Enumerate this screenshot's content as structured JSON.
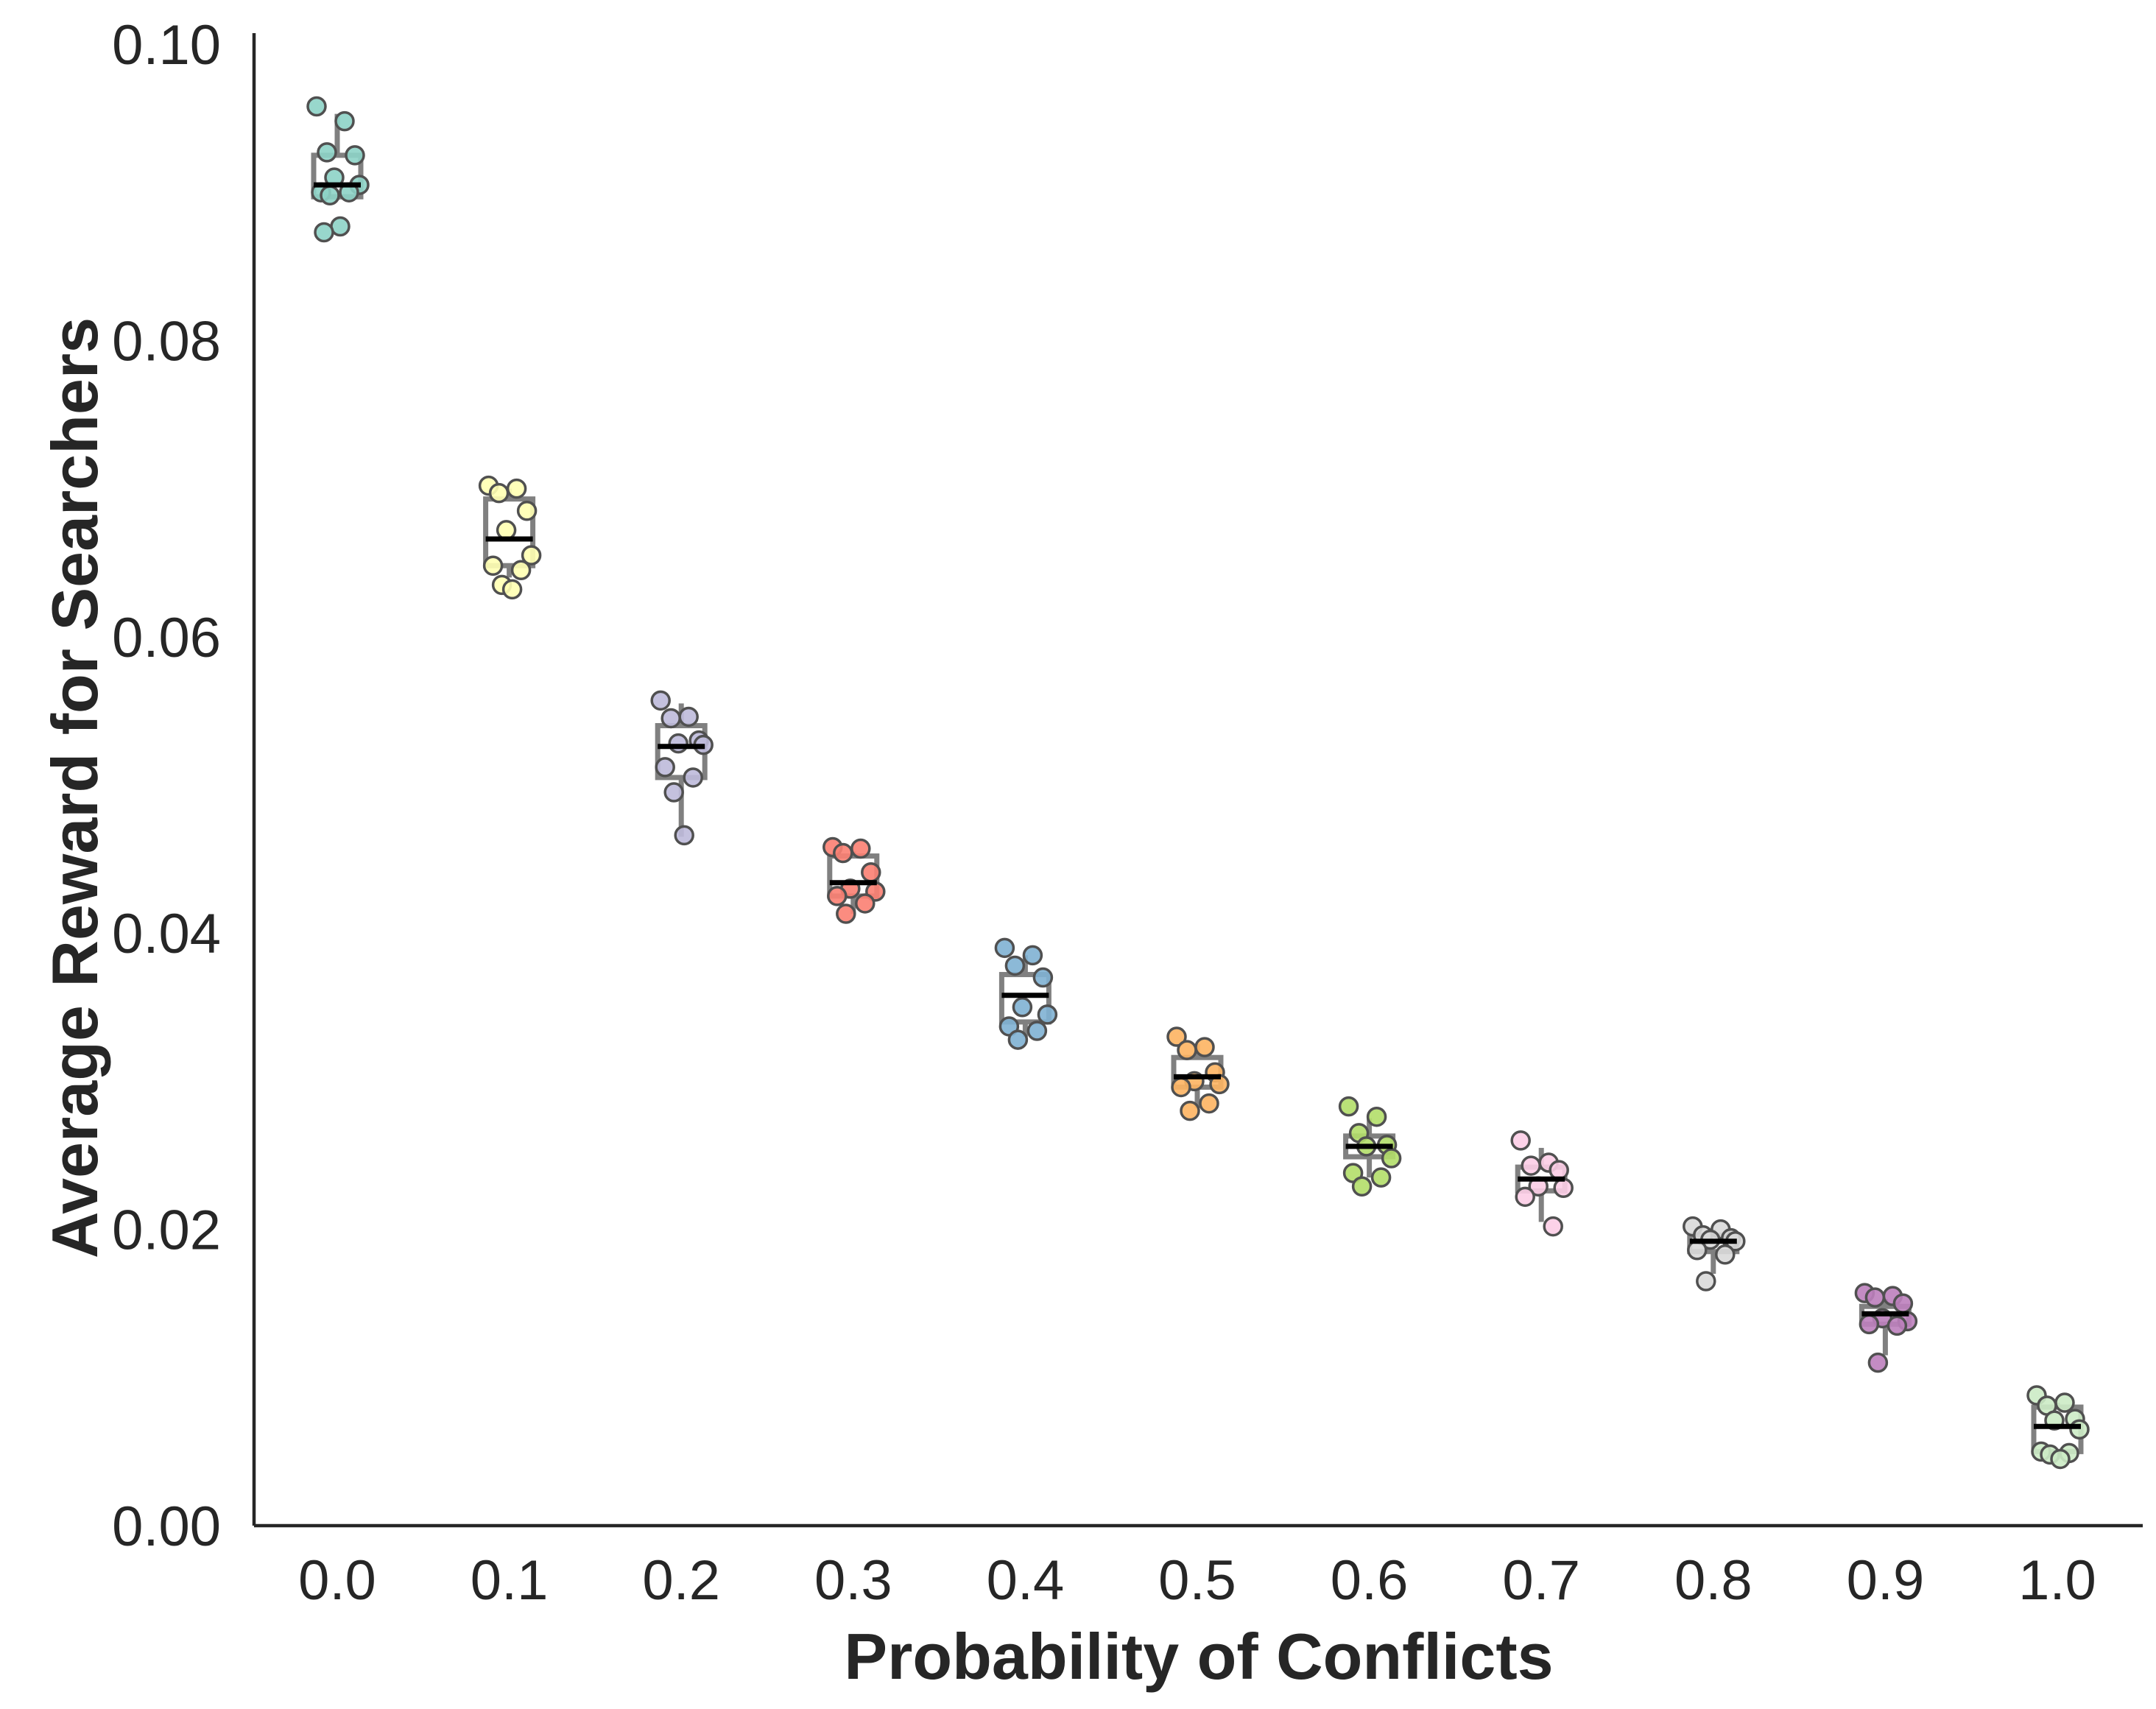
{
  "chart_data": {
    "type": "box-strip",
    "xlabel": "Probability of Conflicts",
    "ylabel": "Average Reward for Searchers",
    "ylim": [
      0.0,
      0.1
    ],
    "yticks": [
      "0.00",
      "0.02",
      "0.04",
      "0.06",
      "0.08",
      "0.10"
    ],
    "grid": false,
    "categories": [
      "0.0",
      "0.1",
      "0.2",
      "0.3",
      "0.4",
      "0.5",
      "0.6",
      "0.7",
      "0.8",
      "0.9",
      "1.0"
    ],
    "colors": [
      "#8dd3c7",
      "#ffffb3",
      "#bebada",
      "#fb8072",
      "#80b1d3",
      "#fdb462",
      "#b3de69",
      "#fccde5",
      "#d9d9d9",
      "#bc80bd",
      "#ccebc5"
    ],
    "groups": [
      {
        "category": "0.0",
        "min": 0.0895,
        "q1": 0.0897,
        "median": 0.0905,
        "q3": 0.0925,
        "max": 0.0953,
        "points": [
          0.0958,
          0.0948,
          0.0927,
          0.0925,
          0.091,
          0.0905,
          0.09,
          0.09,
          0.0898,
          0.0877,
          0.0873
        ]
      },
      {
        "category": "0.1",
        "min": 0.064,
        "q1": 0.0648,
        "median": 0.0666,
        "q3": 0.0693,
        "max": 0.07,
        "points": [
          0.0702,
          0.07,
          0.0697,
          0.0685,
          0.0672,
          0.0655,
          0.0648,
          0.0645,
          0.0635,
          0.0632
        ]
      },
      {
        "category": "0.2",
        "min": 0.0465,
        "q1": 0.0505,
        "median": 0.0526,
        "q3": 0.054,
        "max": 0.0555,
        "points": [
          0.0557,
          0.0546,
          0.0545,
          0.053,
          0.0528,
          0.0527,
          0.0512,
          0.0505,
          0.0495,
          0.0466
        ]
      },
      {
        "category": "0.3",
        "min": 0.0413,
        "q1": 0.0425,
        "median": 0.0434,
        "q3": 0.0452,
        "max": 0.0455,
        "points": [
          0.0458,
          0.0457,
          0.0454,
          0.0441,
          0.043,
          0.0428,
          0.0425,
          0.042,
          0.0413
        ]
      },
      {
        "category": "0.4",
        "min": 0.033,
        "q1": 0.034,
        "median": 0.0358,
        "q3": 0.0372,
        "max": 0.0385,
        "points": [
          0.039,
          0.0385,
          0.0378,
          0.037,
          0.035,
          0.0345,
          0.0337,
          0.0334,
          0.0328
        ]
      },
      {
        "category": "0.5",
        "min": 0.0282,
        "q1": 0.0296,
        "median": 0.0303,
        "q3": 0.0316,
        "max": 0.0325,
        "points": [
          0.033,
          0.0323,
          0.0321,
          0.0306,
          0.03,
          0.0298,
          0.0296,
          0.0285,
          0.028
        ]
      },
      {
        "category": "0.6",
        "min": 0.0235,
        "q1": 0.0249,
        "median": 0.0256,
        "q3": 0.0263,
        "max": 0.0275,
        "points": [
          0.0283,
          0.0276,
          0.0265,
          0.0257,
          0.0256,
          0.0248,
          0.0238,
          0.0235,
          0.0229
        ]
      },
      {
        "category": "0.7",
        "min": 0.0205,
        "q1": 0.0226,
        "median": 0.0234,
        "q3": 0.0242,
        "max": 0.0255,
        "points": [
          0.026,
          0.0245,
          0.0243,
          0.024,
          0.0229,
          0.0228,
          0.0222,
          0.0202
        ]
      },
      {
        "category": "0.8",
        "min": 0.017,
        "q1": 0.0185,
        "median": 0.0192,
        "q3": 0.0196,
        "max": 0.02,
        "points": [
          0.0202,
          0.02,
          0.0196,
          0.0194,
          0.0193,
          0.0192,
          0.0186,
          0.0183,
          0.0165
        ]
      },
      {
        "category": "0.9",
        "min": 0.0115,
        "q1": 0.0136,
        "median": 0.0143,
        "q3": 0.0148,
        "max": 0.0153,
        "points": [
          0.0157,
          0.0155,
          0.0154,
          0.015,
          0.014,
          0.0138,
          0.0136,
          0.0135,
          0.011
        ]
      },
      {
        "category": "1.0",
        "min": 0.0045,
        "q1": 0.005,
        "median": 0.0067,
        "q3": 0.008,
        "max": 0.0083,
        "points": [
          0.0088,
          0.0083,
          0.0081,
          0.0072,
          0.0071,
          0.0065,
          0.005,
          0.0049,
          0.0048,
          0.0045
        ]
      }
    ]
  }
}
